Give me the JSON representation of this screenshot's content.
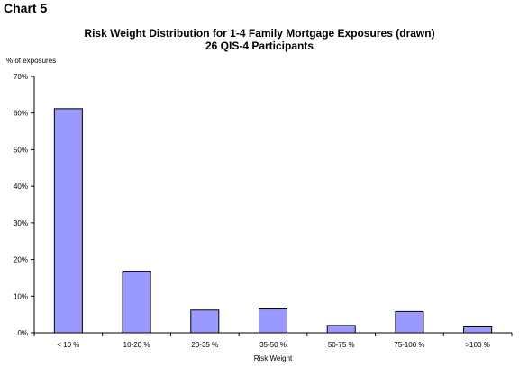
{
  "header": {
    "chart_label": "Chart 5"
  },
  "chart_data": {
    "type": "bar",
    "title": "Risk Weight Distribution for 1-4 Family Mortgage Exposures (drawn)",
    "subtitle": "26 QIS-4 Participants",
    "ylabel": "% of exposures",
    "xlabel": "Risk Weight",
    "categories": [
      "< 10 %",
      "10-20 %",
      "20-35 %",
      "35-50 %",
      "50-75 %",
      "75-100 %",
      ">100 %"
    ],
    "values": [
      61.2,
      16.8,
      6.2,
      6.5,
      2.0,
      5.8,
      1.6
    ],
    "ylim": [
      0,
      70
    ],
    "yticks": [
      0,
      10,
      20,
      30,
      40,
      50,
      60,
      70
    ],
    "ytick_labels": [
      "0%",
      "10%",
      "20%",
      "30%",
      "40%",
      "50%",
      "60%",
      "70%"
    ],
    "bar_color": "#9999ff",
    "bar_edge_color": "#000000",
    "grid": false,
    "legend": "none"
  }
}
